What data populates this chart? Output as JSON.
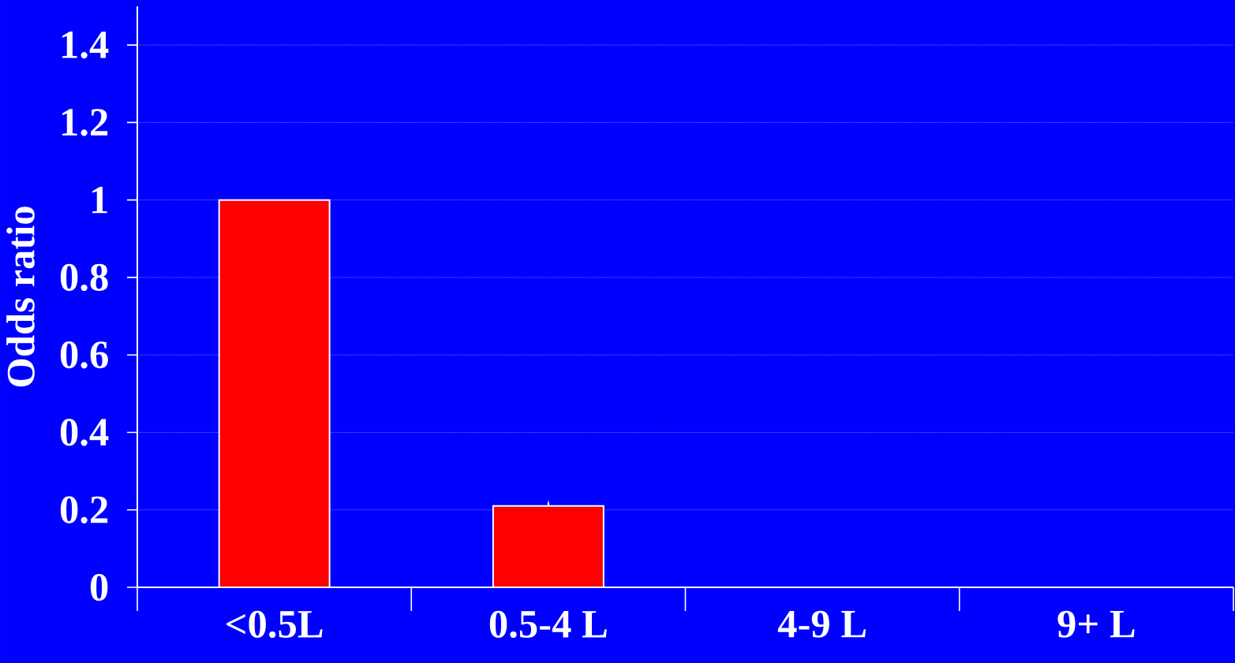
{
  "chart_data": {
    "type": "bar",
    "ylabel": "Odds ratio",
    "categories": [
      "<0.5L",
      "0.5-4 L",
      "4-9 L",
      "9+ L"
    ],
    "values": [
      1,
      0.21,
      null,
      null
    ],
    "errors": [
      null,
      0.01,
      null,
      null
    ],
    "color": "#ff0000",
    "ylim": [
      0,
      1.5
    ],
    "yticks": [
      0,
      0.2,
      0.4,
      0.6,
      0.8,
      1,
      1.2,
      1.4
    ],
    "grid": "y"
  }
}
